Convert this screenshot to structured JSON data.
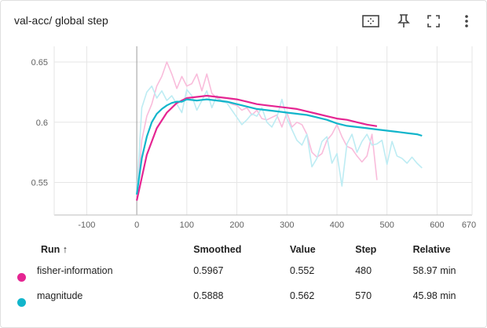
{
  "card": {
    "title": "val-acc/ global step"
  },
  "toolbar": {
    "fit_icon": "fit-domain-icon",
    "pin_icon": "pin-icon",
    "expand_icon": "fullscreen-icon",
    "menu_icon": "more-vert-icon"
  },
  "table": {
    "headers": {
      "run": "Run ↑",
      "smoothed": "Smoothed",
      "value": "Value",
      "step": "Step",
      "relative": "Relative"
    },
    "rows": [
      {
        "color": "#e52592",
        "run": "fisher-information",
        "smoothed": "0.5967",
        "value": "0.552",
        "step": "480",
        "relative": "58.97 min"
      },
      {
        "color": "#12b5cb",
        "run": "magnitude",
        "smoothed": "0.5888",
        "value": "0.562",
        "step": "570",
        "relative": "45.98 min"
      }
    ]
  },
  "chart_data": {
    "type": "line",
    "title": "val-acc/ global step",
    "xlabel": "",
    "ylabel": "",
    "xlim": [
      -165,
      670
    ],
    "ylim": [
      0.523,
      0.663
    ],
    "x_ticks": [
      "-100",
      "0",
      "100",
      "200",
      "300",
      "400",
      "500",
      "600",
      "670"
    ],
    "y_ticks": [
      "0.55",
      "0.6",
      "0.65"
    ],
    "grid": true,
    "series": [
      {
        "name": "fisher-information",
        "color": "#e52592",
        "raw_color": "#f9bcdb",
        "raw": [
          [
            0,
            0.535
          ],
          [
            10,
            0.585
          ],
          [
            20,
            0.605
          ],
          [
            30,
            0.615
          ],
          [
            40,
            0.63
          ],
          [
            50,
            0.638
          ],
          [
            60,
            0.65
          ],
          [
            70,
            0.64
          ],
          [
            80,
            0.628
          ],
          [
            90,
            0.638
          ],
          [
            100,
            0.63
          ],
          [
            110,
            0.632
          ],
          [
            120,
            0.64
          ],
          [
            130,
            0.626
          ],
          [
            140,
            0.64
          ],
          [
            150,
            0.624
          ],
          [
            160,
            0.62
          ],
          [
            170,
            0.618
          ],
          [
            180,
            0.617
          ],
          [
            190,
            0.615
          ],
          [
            200,
            0.614
          ],
          [
            210,
            0.61
          ],
          [
            220,
            0.612
          ],
          [
            230,
            0.606
          ],
          [
            240,
            0.61
          ],
          [
            250,
            0.603
          ],
          [
            260,
            0.602
          ],
          [
            270,
            0.604
          ],
          [
            280,
            0.606
          ],
          [
            290,
            0.596
          ],
          [
            300,
            0.608
          ],
          [
            310,
            0.596
          ],
          [
            320,
            0.6
          ],
          [
            330,
            0.598
          ],
          [
            340,
            0.59
          ],
          [
            350,
            0.575
          ],
          [
            360,
            0.571
          ],
          [
            370,
            0.574
          ],
          [
            380,
            0.585
          ],
          [
            390,
            0.59
          ],
          [
            400,
            0.598
          ],
          [
            410,
            0.588
          ],
          [
            420,
            0.58
          ],
          [
            430,
            0.578
          ],
          [
            440,
            0.572
          ],
          [
            450,
            0.567
          ],
          [
            460,
            0.572
          ],
          [
            470,
            0.59
          ],
          [
            480,
            0.552
          ]
        ],
        "smoothed": [
          [
            0,
            0.535
          ],
          [
            20,
            0.573
          ],
          [
            40,
            0.595
          ],
          [
            60,
            0.608
          ],
          [
            80,
            0.616
          ],
          [
            100,
            0.62
          ],
          [
            120,
            0.621
          ],
          [
            140,
            0.622
          ],
          [
            160,
            0.621
          ],
          [
            180,
            0.62
          ],
          [
            200,
            0.619
          ],
          [
            220,
            0.617
          ],
          [
            240,
            0.615
          ],
          [
            260,
            0.614
          ],
          [
            280,
            0.613
          ],
          [
            300,
            0.612
          ],
          [
            320,
            0.611
          ],
          [
            340,
            0.609
          ],
          [
            360,
            0.607
          ],
          [
            380,
            0.605
          ],
          [
            400,
            0.603
          ],
          [
            420,
            0.602
          ],
          [
            440,
            0.6
          ],
          [
            460,
            0.598
          ],
          [
            480,
            0.5967
          ]
        ]
      },
      {
        "name": "magnitude",
        "color": "#12b5cb",
        "raw_color": "#bdecf3",
        "raw": [
          [
            0,
            0.54
          ],
          [
            10,
            0.612
          ],
          [
            20,
            0.625
          ],
          [
            30,
            0.63
          ],
          [
            40,
            0.62
          ],
          [
            50,
            0.626
          ],
          [
            60,
            0.618
          ],
          [
            70,
            0.622
          ],
          [
            80,
            0.615
          ],
          [
            90,
            0.608
          ],
          [
            100,
            0.627
          ],
          [
            110,
            0.622
          ],
          [
            120,
            0.61
          ],
          [
            130,
            0.618
          ],
          [
            140,
            0.626
          ],
          [
            150,
            0.612
          ],
          [
            160,
            0.622
          ],
          [
            170,
            0.617
          ],
          [
            180,
            0.616
          ],
          [
            190,
            0.61
          ],
          [
            200,
            0.604
          ],
          [
            210,
            0.598
          ],
          [
            220,
            0.602
          ],
          [
            230,
            0.607
          ],
          [
            240,
            0.605
          ],
          [
            250,
            0.612
          ],
          [
            260,
            0.6
          ],
          [
            270,
            0.596
          ],
          [
            280,
            0.604
          ],
          [
            290,
            0.619
          ],
          [
            300,
            0.603
          ],
          [
            310,
            0.594
          ],
          [
            320,
            0.585
          ],
          [
            330,
            0.581
          ],
          [
            340,
            0.59
          ],
          [
            350,
            0.563
          ],
          [
            360,
            0.57
          ],
          [
            370,
            0.584
          ],
          [
            380,
            0.588
          ],
          [
            390,
            0.566
          ],
          [
            400,
            0.574
          ],
          [
            410,
            0.547
          ],
          [
            420,
            0.582
          ],
          [
            430,
            0.59
          ],
          [
            440,
            0.575
          ],
          [
            450,
            0.584
          ],
          [
            460,
            0.59
          ],
          [
            470,
            0.581
          ],
          [
            480,
            0.582
          ],
          [
            490,
            0.585
          ],
          [
            500,
            0.565
          ],
          [
            510,
            0.584
          ],
          [
            520,
            0.572
          ],
          [
            530,
            0.57
          ],
          [
            540,
            0.566
          ],
          [
            550,
            0.571
          ],
          [
            560,
            0.566
          ],
          [
            570,
            0.562
          ]
        ],
        "smoothed": [
          [
            0,
            0.54
          ],
          [
            10,
            0.57
          ],
          [
            20,
            0.588
          ],
          [
            30,
            0.6
          ],
          [
            40,
            0.607
          ],
          [
            50,
            0.611
          ],
          [
            60,
            0.614
          ],
          [
            70,
            0.616
          ],
          [
            80,
            0.617
          ],
          [
            90,
            0.617
          ],
          [
            100,
            0.619
          ],
          [
            120,
            0.618
          ],
          [
            140,
            0.619
          ],
          [
            160,
            0.618
          ],
          [
            180,
            0.617
          ],
          [
            200,
            0.615
          ],
          [
            220,
            0.613
          ],
          [
            240,
            0.611
          ],
          [
            260,
            0.61
          ],
          [
            280,
            0.609
          ],
          [
            300,
            0.608
          ],
          [
            320,
            0.607
          ],
          [
            340,
            0.606
          ],
          [
            360,
            0.604
          ],
          [
            380,
            0.602
          ],
          [
            400,
            0.599
          ],
          [
            420,
            0.597
          ],
          [
            440,
            0.596
          ],
          [
            460,
            0.595
          ],
          [
            480,
            0.594
          ],
          [
            500,
            0.593
          ],
          [
            520,
            0.592
          ],
          [
            540,
            0.591
          ],
          [
            560,
            0.59
          ],
          [
            570,
            0.5888
          ]
        ]
      }
    ]
  }
}
